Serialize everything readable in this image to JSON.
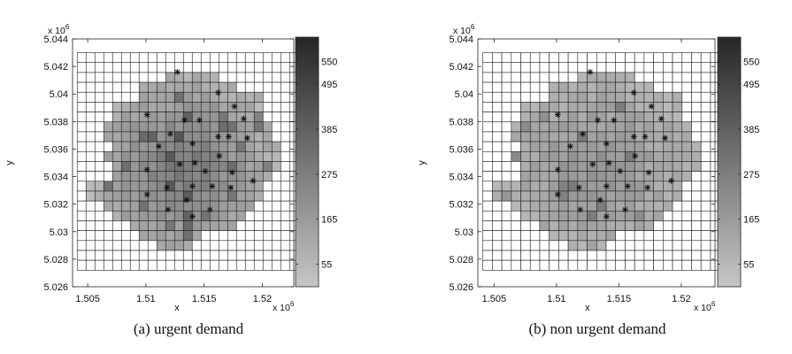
{
  "chart_data": [
    {
      "type": "heatmap",
      "caption": "(a) urgent demand",
      "xlabel": "x",
      "ylabel": "y",
      "x_multiplier": "x 10",
      "x_multiplier_exp": "6",
      "y_multiplier": "x 10",
      "y_multiplier_exp": "6",
      "xlim": [
        1.5037,
        1.5227
      ],
      "ylim": [
        5.026,
        5.044
      ],
      "xticks": [
        1.505,
        1.51,
        1.515,
        1.52
      ],
      "xtick_labels": [
        "1.505",
        "1.51",
        "1.515",
        "1.52"
      ],
      "yticks": [
        5.026,
        5.028,
        5.03,
        5.032,
        5.034,
        5.036,
        5.038,
        5.04,
        5.042,
        5.044
      ],
      "ytick_labels": [
        "5.026",
        "5.028",
        "5.03",
        "5.032",
        "5.034",
        "5.036",
        "5.038",
        "5.04",
        "5.042",
        "5.044"
      ],
      "grid_x_range": [
        1.5041,
        1.5231
      ],
      "grid_y_range": [
        5.0272,
        5.043
      ],
      "grid_cols": 25,
      "grid_rows": 22,
      "colorbar": {
        "min": 0,
        "max": 610,
        "ticks": [
          55,
          165,
          275,
          385,
          495,
          550
        ],
        "tick_labels": [
          "55",
          "165",
          "275",
          "385",
          "495",
          "550"
        ]
      },
      "colors": {
        "cell_low": "#c6c6c6",
        "cell_high": "#262626",
        "empty_cell": "#ffffff",
        "grid_line": "#222222"
      },
      "stations": [
        [
          1.5127,
          5.0416
        ],
        [
          1.5162,
          5.0401
        ],
        [
          1.5101,
          5.0385
        ],
        [
          1.5133,
          5.0381
        ],
        [
          1.5146,
          5.0381
        ],
        [
          1.5176,
          5.0391
        ],
        [
          1.5184,
          5.0382
        ],
        [
          1.5121,
          5.0371
        ],
        [
          1.5162,
          5.0369
        ],
        [
          1.5171,
          5.0369
        ],
        [
          1.5187,
          5.0368
        ],
        [
          1.5111,
          5.0362
        ],
        [
          1.514,
          5.0364
        ],
        [
          1.5163,
          5.0355
        ],
        [
          1.5129,
          5.0349
        ],
        [
          1.5142,
          5.035
        ],
        [
          1.5101,
          5.0345
        ],
        [
          1.5151,
          5.0344
        ],
        [
          1.5174,
          5.0343
        ],
        [
          1.5192,
          5.0337
        ],
        [
          1.5118,
          5.0332
        ],
        [
          1.514,
          5.0333
        ],
        [
          1.5157,
          5.0333
        ],
        [
          1.5173,
          5.0332
        ],
        [
          1.5101,
          5.0327
        ],
        [
          1.5135,
          5.0323
        ],
        [
          1.5119,
          5.0316
        ],
        [
          1.514,
          5.0311
        ],
        [
          1.5155,
          5.0316
        ]
      ]
    },
    {
      "type": "heatmap",
      "caption": "(b) non urgent demand",
      "xlabel": "x",
      "ylabel": "y",
      "x_multiplier": "x 10",
      "x_multiplier_exp": "6",
      "y_multiplier": "x 10",
      "y_multiplier_exp": "6",
      "xlim": [
        1.5037,
        1.5227
      ],
      "ylim": [
        5.026,
        5.044
      ],
      "xticks": [
        1.505,
        1.51,
        1.515,
        1.52
      ],
      "xtick_labels": [
        "1.505",
        "1.51",
        "1.515",
        "1.52"
      ],
      "yticks": [
        5.026,
        5.028,
        5.03,
        5.032,
        5.034,
        5.036,
        5.038,
        5.04,
        5.042,
        5.044
      ],
      "ytick_labels": [
        "5.026",
        "5.028",
        "5.03",
        "5.032",
        "5.034",
        "5.036",
        "5.038",
        "5.04",
        "5.042",
        "5.044"
      ],
      "grid_x_range": [
        1.5041,
        1.5231
      ],
      "grid_y_range": [
        5.0272,
        5.043
      ],
      "grid_cols": 25,
      "grid_rows": 22,
      "colorbar": {
        "min": 0,
        "max": 610,
        "ticks": [
          55,
          165,
          275,
          385,
          495,
          550
        ],
        "tick_labels": [
          "55",
          "165",
          "275",
          "385",
          "495",
          "550"
        ]
      },
      "colors": {
        "cell_low": "#c6c6c6",
        "cell_high": "#262626",
        "empty_cell": "#ffffff",
        "grid_line": "#222222"
      },
      "stations": [
        [
          1.5127,
          5.0416
        ],
        [
          1.5162,
          5.0401
        ],
        [
          1.5101,
          5.0385
        ],
        [
          1.5133,
          5.0381
        ],
        [
          1.5146,
          5.0381
        ],
        [
          1.5176,
          5.0391
        ],
        [
          1.5184,
          5.0382
        ],
        [
          1.5121,
          5.0371
        ],
        [
          1.5162,
          5.0369
        ],
        [
          1.5171,
          5.0369
        ],
        [
          1.5187,
          5.0368
        ],
        [
          1.5111,
          5.0362
        ],
        [
          1.514,
          5.0364
        ],
        [
          1.5163,
          5.0355
        ],
        [
          1.5129,
          5.0349
        ],
        [
          1.5142,
          5.035
        ],
        [
          1.5101,
          5.0345
        ],
        [
          1.5151,
          5.0344
        ],
        [
          1.5174,
          5.0343
        ],
        [
          1.5192,
          5.0337
        ],
        [
          1.5118,
          5.0332
        ],
        [
          1.514,
          5.0333
        ],
        [
          1.5157,
          5.0333
        ],
        [
          1.5173,
          5.0332
        ],
        [
          1.5101,
          5.0327
        ],
        [
          1.5135,
          5.0323
        ],
        [
          1.5119,
          5.0316
        ],
        [
          1.514,
          5.0311
        ],
        [
          1.5155,
          5.0316
        ]
      ]
    }
  ]
}
